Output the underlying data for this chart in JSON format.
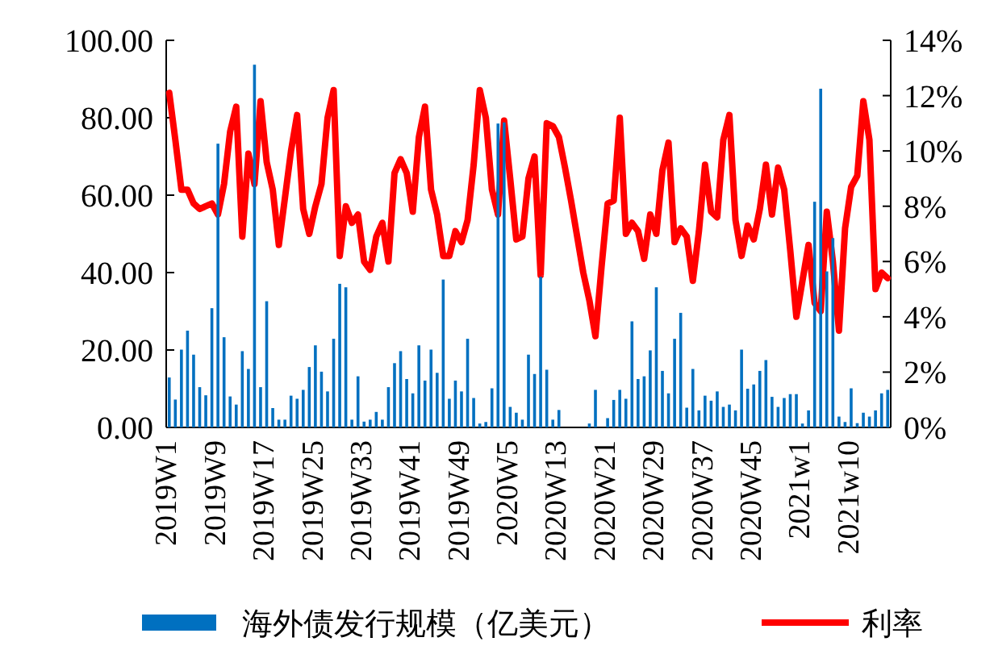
{
  "chart_data": {
    "type": "bar",
    "categories": [
      "2019W1",
      null,
      null,
      null,
      null,
      null,
      null,
      null,
      "2019W9",
      null,
      null,
      null,
      null,
      null,
      null,
      null,
      "2019W17",
      null,
      null,
      null,
      null,
      null,
      null,
      null,
      "2019W25",
      null,
      null,
      null,
      null,
      null,
      null,
      null,
      "2019W33",
      null,
      null,
      null,
      null,
      null,
      null,
      null,
      "2019W41",
      null,
      null,
      null,
      null,
      null,
      null,
      null,
      "2019W49",
      null,
      null,
      null,
      null,
      null,
      null,
      null,
      "2020W5",
      null,
      null,
      null,
      null,
      null,
      null,
      null,
      "2020W13",
      null,
      null,
      null,
      null,
      null,
      null,
      null,
      "2020W21",
      null,
      null,
      null,
      null,
      null,
      null,
      null,
      "2020W29",
      null,
      null,
      null,
      null,
      null,
      null,
      null,
      "2020W37",
      null,
      null,
      null,
      null,
      null,
      null,
      null,
      "2020W45",
      null,
      null,
      null,
      null,
      null,
      null,
      null,
      "2021w1",
      null,
      null,
      null,
      null,
      null,
      null,
      null,
      "2021w10",
      null,
      null,
      null,
      null,
      null,
      null
    ],
    "series": [
      {
        "name": "海外债发行规模（亿美元）",
        "color": "#0070c0",
        "values": [
          12.9,
          7.2,
          20.1,
          25,
          18.8,
          10.4,
          8.3,
          30.8,
          73.3,
          23.3,
          8,
          5.9,
          19.7,
          15.1,
          93.7,
          10.4,
          32.6,
          5,
          2,
          2,
          8.2,
          7.4,
          9.7,
          15.6,
          21.2,
          14.4,
          9.3,
          22.9,
          37.1,
          36.2,
          2,
          13.2,
          1.5,
          2,
          4,
          2,
          10.4,
          16.6,
          19.7,
          12.5,
          8.8,
          21.2,
          12.1,
          20.1,
          14.1,
          38.2,
          7.4,
          12.1,
          9.3,
          22.9,
          7.6,
          1,
          1.4,
          10.1,
          78.5,
          78.8,
          5.3,
          3.8,
          2,
          18.8,
          13.8,
          38.9,
          14.9,
          2,
          4.5,
          0,
          0,
          0,
          0,
          1,
          9.7,
          0,
          2.4,
          7.1,
          9.7,
          7.4,
          27.4,
          12.5,
          13.2,
          19.9,
          36.2,
          14.6,
          8.8,
          22.9,
          29.6,
          5.1,
          15.1,
          4.4,
          8.2,
          6.9,
          9.3,
          5.3,
          5.9,
          4.4,
          20.1,
          10,
          11.1,
          14.6,
          17.4,
          7.9,
          5.3,
          7.6,
          8.6,
          8.6,
          1,
          4.4,
          58.3,
          87.5,
          40.3,
          48.9,
          2.8,
          1.4,
          10.1,
          1.1,
          3.8,
          2.8,
          4.4,
          8.8,
          9.7
        ]
      },
      {
        "name": "利率",
        "type": "line",
        "axis": "y2",
        "color": "#ff0000",
        "values": [
          12.1,
          10.4,
          8.6,
          8.6,
          8.1,
          7.9,
          8.0,
          8.1,
          7.7,
          8.8,
          10.7,
          11.6,
          6.9,
          9.9,
          8.8,
          11.8,
          9.6,
          8.6,
          6.6,
          8.3,
          10.0,
          11.3,
          7.9,
          7.0,
          8.0,
          8.8,
          11.2,
          12.2,
          6.2,
          8.0,
          7.4,
          7.7,
          6.0,
          5.7,
          6.9,
          7.4,
          6.0,
          9.2,
          9.7,
          9.2,
          7.8,
          10.5,
          11.6,
          8.6,
          7.7,
          6.2,
          6.2,
          7.1,
          6.7,
          7.5,
          9.5,
          12.2,
          11.2,
          8.6,
          7.7,
          11.1,
          9.0,
          6.8,
          6.9,
          9.0,
          9.8,
          5.5,
          11.0,
          10.9,
          10.5,
          9.4,
          8.2,
          6.9,
          5.6,
          4.6,
          3.3,
          5.8,
          8.1,
          8.2,
          11.2,
          7.0,
          7.4,
          7.1,
          6.1,
          7.7,
          7.0,
          9.3,
          10.3,
          6.7,
          7.2,
          6.9,
          5.3,
          7.1,
          9.5,
          7.8,
          7.6,
          10.4,
          11.3,
          7.5,
          6.2,
          7.3,
          6.8,
          7.9,
          9.5,
          7.7,
          9.4,
          8.6,
          6.4,
          4.0,
          5.3,
          6.6,
          4.5,
          4.2,
          7.8,
          6.0,
          3.5,
          7.2,
          8.7,
          9.1,
          11.8,
          10.4,
          5.0,
          5.6,
          5.4
        ]
      }
    ],
    "ylim": [
      0,
      100
    ],
    "yticks": [
      {
        "value": 0,
        "label": "0.00"
      },
      {
        "value": 20,
        "label": "20.00"
      },
      {
        "value": 40,
        "label": "40.00"
      },
      {
        "value": 60,
        "label": "60.00"
      },
      {
        "value": 80,
        "label": "80.00"
      },
      {
        "value": 100,
        "label": "100.00"
      }
    ],
    "y2lim": [
      0,
      14
    ],
    "y2ticks": [
      {
        "value": 0,
        "label": "0%"
      },
      {
        "value": 2,
        "label": "2%"
      },
      {
        "value": 4,
        "label": "4%"
      },
      {
        "value": 6,
        "label": "6%"
      },
      {
        "value": 8,
        "label": "8%"
      },
      {
        "value": 10,
        "label": "10%"
      },
      {
        "value": 12,
        "label": "12%"
      },
      {
        "value": 14,
        "label": "14%"
      }
    ],
    "legend": "bottom"
  }
}
